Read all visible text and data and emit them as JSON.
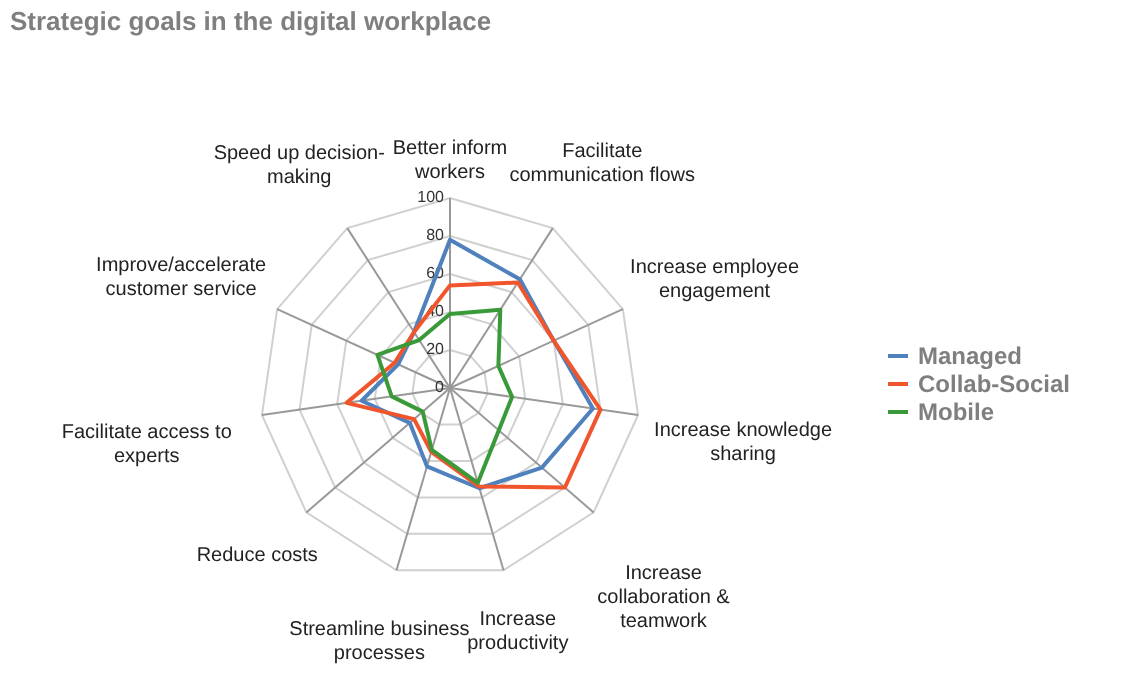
{
  "chart_data": {
    "type": "radar",
    "title": "Strategic goals in the digital workplace",
    "categories": [
      "Better inform workers",
      "Facilitate communication flows",
      "Increase employee engagement",
      "Increase knowledge sharing",
      "Increase collaboration & teamwork",
      "Increase productivity",
      "Streamline business processes",
      "Reduce costs",
      "Facilitate access to experts",
      "Improve/accelerate customer service",
      "Speed up decision-making"
    ],
    "series": [
      {
        "name": "Managed",
        "color": "#4f81bd",
        "values": [
          78,
          68,
          60,
          76,
          64,
          55,
          43,
          28,
          47,
          30,
          35
        ]
      },
      {
        "name": "Collab-Social",
        "color": "#f0552b",
        "values": [
          54,
          66,
          60,
          80,
          80,
          54,
          35,
          25,
          55,
          32,
          35
        ]
      },
      {
        "name": "Mobile",
        "color": "#3a9a3a",
        "values": [
          39,
          49,
          28,
          33,
          34,
          52,
          34,
          19,
          31,
          42,
          30
        ]
      }
    ],
    "ylim": [
      0,
      100
    ],
    "yticks": [
      0,
      20,
      40,
      60,
      80,
      100
    ],
    "grid": true,
    "legend": "right",
    "line_style": "solid",
    "marker": "none"
  }
}
